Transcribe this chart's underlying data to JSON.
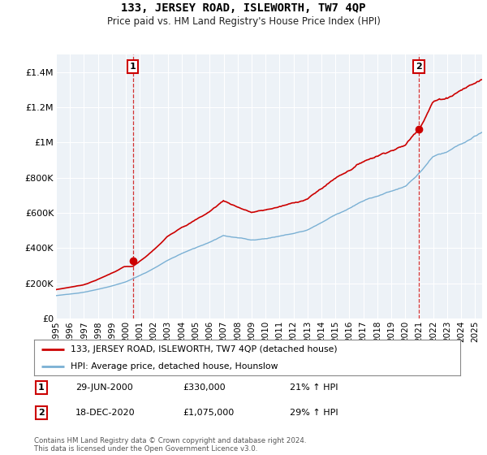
{
  "title": "133, JERSEY ROAD, ISLEWORTH, TW7 4QP",
  "subtitle": "Price paid vs. HM Land Registry's House Price Index (HPI)",
  "ylabel_ticks": [
    "£0",
    "£200K",
    "£400K",
    "£600K",
    "£800K",
    "£1M",
    "£1.2M",
    "£1.4M"
  ],
  "ytick_values": [
    0,
    200000,
    400000,
    600000,
    800000,
    1000000,
    1200000,
    1400000
  ],
  "ylim": [
    0,
    1500000
  ],
  "xlim_start": 1995.0,
  "xlim_end": 2025.5,
  "marker1_x": 2000.49,
  "marker1_y": 330000,
  "marker1_label": "1",
  "marker2_x": 2020.96,
  "marker2_y": 1075000,
  "marker2_label": "2",
  "vline1_x": 2000.49,
  "vline2_x": 2020.96,
  "house_color": "#cc0000",
  "hpi_color": "#7ab0d4",
  "background_color": "#edf2f7",
  "grid_color": "#ffffff",
  "legend_house": "133, JERSEY ROAD, ISLEWORTH, TW7 4QP (detached house)",
  "legend_hpi": "HPI: Average price, detached house, Hounslow",
  "note1_label": "1",
  "note1_date": "29-JUN-2000",
  "note1_price": "£330,000",
  "note1_hpi": "21% ↑ HPI",
  "note2_label": "2",
  "note2_date": "18-DEC-2020",
  "note2_price": "£1,075,000",
  "note2_hpi": "29% ↑ HPI",
  "footer": "Contains HM Land Registry data © Crown copyright and database right 2024.\nThis data is licensed under the Open Government Licence v3.0."
}
